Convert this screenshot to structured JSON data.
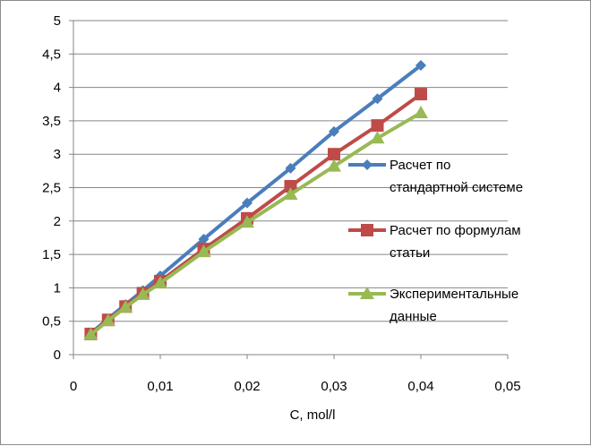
{
  "chart_data": {
    "type": "line",
    "title": "",
    "xlabel": "C, mol/l",
    "ylabel": "",
    "xlim": [
      0,
      0.05
    ],
    "ylim": [
      0,
      5
    ],
    "xticks": [
      "0",
      "0,01",
      "0,02",
      "0,03",
      "0,04",
      "0,05"
    ],
    "yticks": [
      "0",
      "0,5",
      "1",
      "1,5",
      "2",
      "2,5",
      "3",
      "3,5",
      "4",
      "4,5",
      "5"
    ],
    "grid": "horizontal",
    "legend_position": "right",
    "x": [
      0.002,
      0.004,
      0.006,
      0.008,
      0.01,
      0.015,
      0.02,
      0.025,
      0.03,
      0.035,
      0.04
    ],
    "series": [
      {
        "name": "Расчет по стандартной системе",
        "name_lines": [
          "Расчет по",
          "стандартной системе"
        ],
        "color": "#4a7ebb",
        "marker": "diamond",
        "values": [
          0.32,
          0.54,
          0.75,
          0.96,
          1.18,
          1.73,
          2.27,
          2.79,
          3.34,
          3.83,
          4.33
        ]
      },
      {
        "name": "Расчет по формулам статьи",
        "name_lines": [
          "Расчет по формулам",
          "статьи"
        ],
        "color": "#be4b48",
        "marker": "square",
        "values": [
          0.31,
          0.52,
          0.72,
          0.92,
          1.1,
          1.58,
          2.04,
          2.52,
          3.0,
          3.43,
          3.9
        ]
      },
      {
        "name": "Экспериментальные данные",
        "name_lines": [
          "Экспериментальные",
          "данные"
        ],
        "color": "#98b954",
        "marker": "triangle",
        "values": [
          0.3,
          0.51,
          0.71,
          0.9,
          1.07,
          1.54,
          1.98,
          2.4,
          2.82,
          3.24,
          3.62
        ]
      }
    ]
  }
}
